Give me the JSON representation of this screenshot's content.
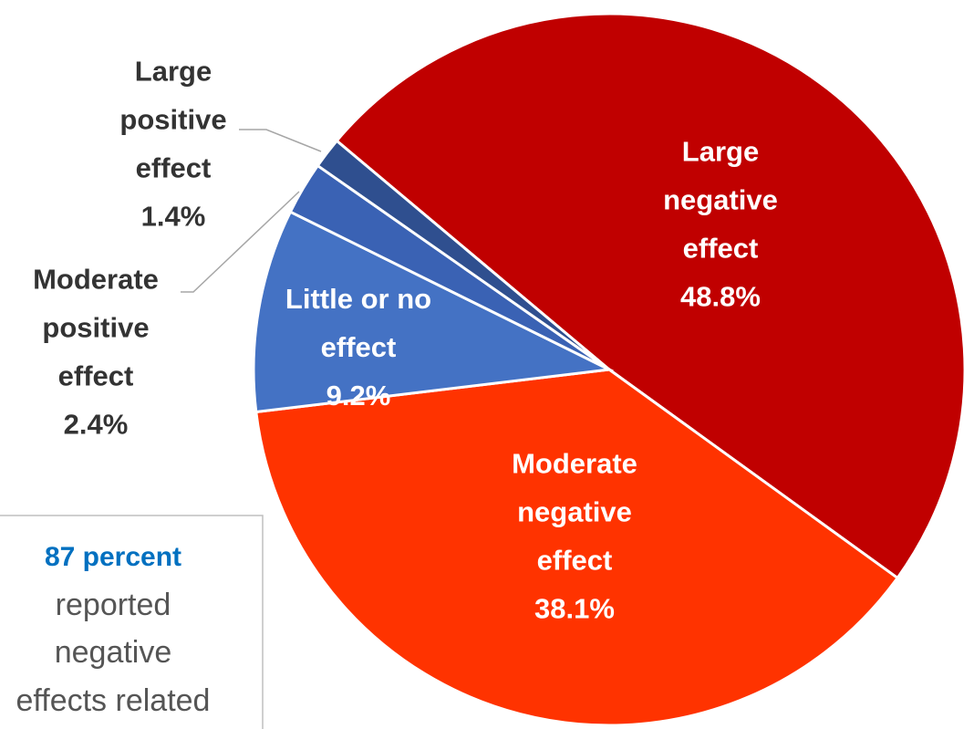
{
  "chart_data": {
    "type": "pie",
    "categories": [
      "Large negative effect",
      "Moderate negative effect",
      "Little or no effect",
      "Moderate positive effect",
      "Large positive effect"
    ],
    "values": [
      48.8,
      38.1,
      9.2,
      2.4,
      1.4
    ],
    "value_labels": [
      "48.8%",
      "38.1%",
      "9.2%",
      "2.4%",
      "1.4%"
    ],
    "colors": [
      "#c00000",
      "#ff3300",
      "#4472c4",
      "#3a62b4",
      "#2f4f8f"
    ],
    "annotation": {
      "headline": "87 percent",
      "lines": [
        "reported",
        "negative",
        "effects related"
      ]
    }
  }
}
